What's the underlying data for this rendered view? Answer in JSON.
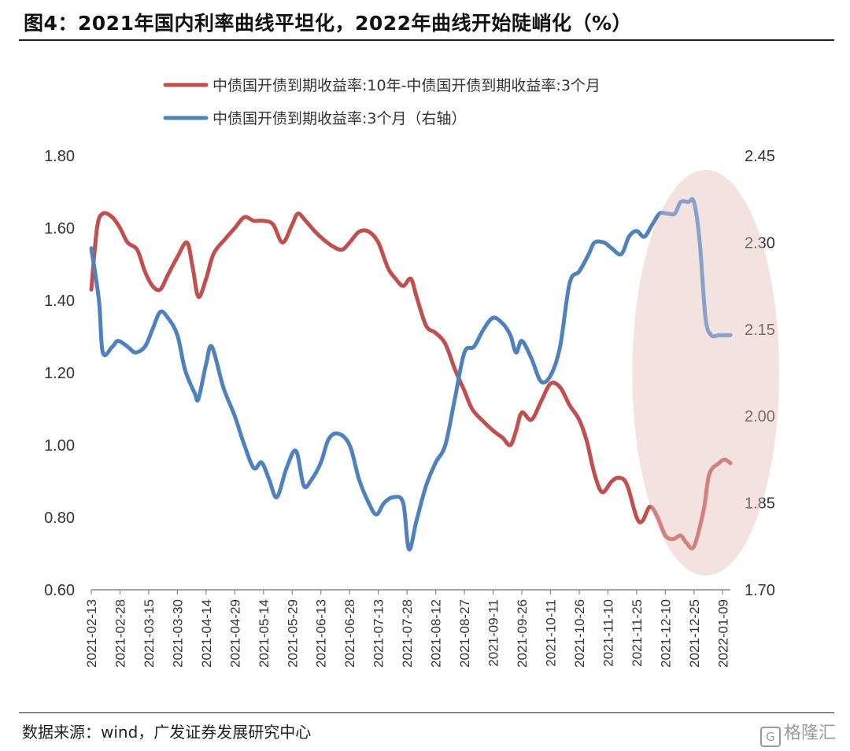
{
  "header": {
    "title": "图4：2021年国内利率曲线平坦化，2022年曲线开始陡峭化（%）"
  },
  "footer": {
    "source": "数据来源：wind，广发证券发展研究中心",
    "watermark": "格隆汇"
  },
  "colors": {
    "spread": "#C0504D",
    "rate3m": "#4F81BD",
    "highlight": "#F2DCDB",
    "axis": "#888888"
  },
  "chart_data": {
    "type": "line",
    "title": "图4：2021年国内利率曲线平坦化，2022年曲线开始陡峭化（%）",
    "x_ticks": [
      "2021-02-13",
      "2021-02-28",
      "2021-03-15",
      "2021-03-30",
      "2021-04-14",
      "2021-04-29",
      "2021-05-14",
      "2021-05-29",
      "2021-06-13",
      "2021-06-28",
      "2021-07-13",
      "2021-07-28",
      "2021-08-12",
      "2021-08-27",
      "2021-09-11",
      "2021-09-26",
      "2021-10-11",
      "2021-10-26",
      "2021-11-10",
      "2021-11-25",
      "2021-12-10",
      "2021-12-25",
      "2022-01-09"
    ],
    "x_range": [
      "2021-02-13",
      "2022-01-13"
    ],
    "y_left": {
      "min": 0.6,
      "max": 1.8,
      "ticks": [
        "0.60",
        "0.80",
        "1.00",
        "1.20",
        "1.40",
        "1.60",
        "1.80"
      ]
    },
    "y_right": {
      "min": 1.7,
      "max": 2.45,
      "ticks": [
        "1.70",
        "1.85",
        "2.00",
        "2.15",
        "2.30",
        "2.45"
      ]
    },
    "legend_position": "top-center",
    "highlight": {
      "shape": "ellipse",
      "from": "2021-12-10",
      "to": "2022-01-13",
      "note": ""
    },
    "series": [
      {
        "name": "中债国开债到期收益率:10年-中债国开债到期收益率:3个月",
        "axis": "left",
        "points": [
          [
            "2021-02-13",
            1.43
          ],
          [
            "2021-02-16",
            1.6
          ],
          [
            "2021-02-19",
            1.64
          ],
          [
            "2021-02-24",
            1.63
          ],
          [
            "2021-02-28",
            1.6
          ],
          [
            "2021-03-04",
            1.56
          ],
          [
            "2021-03-09",
            1.54
          ],
          [
            "2021-03-13",
            1.48
          ],
          [
            "2021-03-17",
            1.44
          ],
          [
            "2021-03-21",
            1.43
          ],
          [
            "2021-03-25",
            1.47
          ],
          [
            "2021-03-30",
            1.52
          ],
          [
            "2021-04-04",
            1.56
          ],
          [
            "2021-04-07",
            1.49
          ],
          [
            "2021-04-10",
            1.41
          ],
          [
            "2021-04-14",
            1.46
          ],
          [
            "2021-04-18",
            1.53
          ],
          [
            "2021-04-24",
            1.57
          ],
          [
            "2021-04-29",
            1.6
          ],
          [
            "2021-05-04",
            1.63
          ],
          [
            "2021-05-09",
            1.62
          ],
          [
            "2021-05-14",
            1.62
          ],
          [
            "2021-05-19",
            1.61
          ],
          [
            "2021-05-24",
            1.56
          ],
          [
            "2021-05-29",
            1.61
          ],
          [
            "2021-06-01",
            1.64
          ],
          [
            "2021-06-05",
            1.62
          ],
          [
            "2021-06-10",
            1.59
          ],
          [
            "2021-06-14",
            1.57
          ],
          [
            "2021-06-19",
            1.55
          ],
          [
            "2021-06-24",
            1.54
          ],
          [
            "2021-06-28",
            1.56
          ],
          [
            "2021-07-03",
            1.59
          ],
          [
            "2021-07-08",
            1.59
          ],
          [
            "2021-07-13",
            1.56
          ],
          [
            "2021-07-18",
            1.49
          ],
          [
            "2021-07-22",
            1.46
          ],
          [
            "2021-07-26",
            1.44
          ],
          [
            "2021-07-30",
            1.46
          ],
          [
            "2021-08-02",
            1.41
          ],
          [
            "2021-08-07",
            1.33
          ],
          [
            "2021-08-12",
            1.31
          ],
          [
            "2021-08-17",
            1.28
          ],
          [
            "2021-08-22",
            1.21
          ],
          [
            "2021-08-27",
            1.15
          ],
          [
            "2021-08-31",
            1.1
          ],
          [
            "2021-09-05",
            1.07
          ],
          [
            "2021-09-11",
            1.04
          ],
          [
            "2021-09-16",
            1.02
          ],
          [
            "2021-09-20",
            1.0
          ],
          [
            "2021-09-23",
            1.04
          ],
          [
            "2021-09-26",
            1.09
          ],
          [
            "2021-10-01",
            1.07
          ],
          [
            "2021-10-06",
            1.12
          ],
          [
            "2021-10-11",
            1.17
          ],
          [
            "2021-10-16",
            1.16
          ],
          [
            "2021-10-21",
            1.11
          ],
          [
            "2021-10-26",
            1.07
          ],
          [
            "2021-10-30",
            1.01
          ],
          [
            "2021-11-03",
            0.92
          ],
          [
            "2021-11-07",
            0.87
          ],
          [
            "2021-11-12",
            0.9
          ],
          [
            "2021-11-16",
            0.91
          ],
          [
            "2021-11-20",
            0.89
          ],
          [
            "2021-11-25",
            0.8
          ],
          [
            "2021-11-28",
            0.79
          ],
          [
            "2021-12-02",
            0.83
          ],
          [
            "2021-12-06",
            0.8
          ],
          [
            "2021-12-10",
            0.75
          ],
          [
            "2021-12-14",
            0.74
          ],
          [
            "2021-12-18",
            0.75
          ],
          [
            "2021-12-21",
            0.73
          ],
          [
            "2021-12-25",
            0.72
          ],
          [
            "2021-12-30",
            0.82
          ],
          [
            "2022-01-02",
            0.92
          ],
          [
            "2022-01-07",
            0.95
          ],
          [
            "2022-01-10",
            0.96
          ],
          [
            "2022-01-13",
            0.95
          ]
        ]
      },
      {
        "name": "中债国开债到期收益率:3个月（右轴）",
        "axis": "right",
        "points": [
          [
            "2021-02-13",
            2.29
          ],
          [
            "2021-02-17",
            2.2
          ],
          [
            "2021-02-19",
            2.11
          ],
          [
            "2021-02-24",
            2.12
          ],
          [
            "2021-02-27",
            2.13
          ],
          [
            "2021-03-04",
            2.12
          ],
          [
            "2021-03-08",
            2.11
          ],
          [
            "2021-03-13",
            2.12
          ],
          [
            "2021-03-17",
            2.15
          ],
          [
            "2021-03-21",
            2.18
          ],
          [
            "2021-03-25",
            2.17
          ],
          [
            "2021-03-30",
            2.14
          ],
          [
            "2021-04-03",
            2.08
          ],
          [
            "2021-04-08",
            2.04
          ],
          [
            "2021-04-10",
            2.03
          ],
          [
            "2021-04-14",
            2.09
          ],
          [
            "2021-04-17",
            2.12
          ],
          [
            "2021-04-23",
            2.05
          ],
          [
            "2021-04-29",
            2.0
          ],
          [
            "2021-05-04",
            1.95
          ],
          [
            "2021-05-09",
            1.91
          ],
          [
            "2021-05-13",
            1.92
          ],
          [
            "2021-05-17",
            1.89
          ],
          [
            "2021-05-21",
            1.86
          ],
          [
            "2021-05-26",
            1.91
          ],
          [
            "2021-05-31",
            1.94
          ],
          [
            "2021-06-04",
            1.88
          ],
          [
            "2021-06-08",
            1.89
          ],
          [
            "2021-06-13",
            1.92
          ],
          [
            "2021-06-17",
            1.96
          ],
          [
            "2021-06-22",
            1.97
          ],
          [
            "2021-06-28",
            1.95
          ],
          [
            "2021-07-03",
            1.89
          ],
          [
            "2021-07-08",
            1.85
          ],
          [
            "2021-07-12",
            1.83
          ],
          [
            "2021-07-16",
            1.85
          ],
          [
            "2021-07-21",
            1.86
          ],
          [
            "2021-07-26",
            1.85
          ],
          [
            "2021-07-29",
            1.77
          ],
          [
            "2021-08-02",
            1.82
          ],
          [
            "2021-08-07",
            1.88
          ],
          [
            "2021-08-12",
            1.92
          ],
          [
            "2021-08-17",
            1.95
          ],
          [
            "2021-08-22",
            2.03
          ],
          [
            "2021-08-27",
            2.11
          ],
          [
            "2021-09-01",
            2.12
          ],
          [
            "2021-09-06",
            2.15
          ],
          [
            "2021-09-11",
            2.17
          ],
          [
            "2021-09-16",
            2.16
          ],
          [
            "2021-09-20",
            2.14
          ],
          [
            "2021-09-23",
            2.11
          ],
          [
            "2021-09-26",
            2.13
          ],
          [
            "2021-10-01",
            2.1
          ],
          [
            "2021-10-06",
            2.06
          ],
          [
            "2021-10-11",
            2.07
          ],
          [
            "2021-10-16",
            2.12
          ],
          [
            "2021-10-21",
            2.23
          ],
          [
            "2021-10-26",
            2.25
          ],
          [
            "2021-10-31",
            2.28
          ],
          [
            "2021-11-03",
            2.3
          ],
          [
            "2021-11-08",
            2.3
          ],
          [
            "2021-11-12",
            2.29
          ],
          [
            "2021-11-17",
            2.28
          ],
          [
            "2021-11-21",
            2.31
          ],
          [
            "2021-11-25",
            2.32
          ],
          [
            "2021-11-29",
            2.31
          ],
          [
            "2021-12-03",
            2.33
          ],
          [
            "2021-12-07",
            2.35
          ],
          [
            "2021-12-11",
            2.35
          ],
          [
            "2021-12-15",
            2.35
          ],
          [
            "2021-12-18",
            2.37
          ],
          [
            "2021-12-22",
            2.37
          ],
          [
            "2021-12-25",
            2.37
          ],
          [
            "2021-12-28",
            2.3
          ],
          [
            "2021-12-31",
            2.17
          ],
          [
            "2022-01-03",
            2.14
          ],
          [
            "2022-01-07",
            2.14
          ],
          [
            "2022-01-11",
            2.14
          ],
          [
            "2022-01-13",
            2.14
          ]
        ]
      }
    ]
  }
}
